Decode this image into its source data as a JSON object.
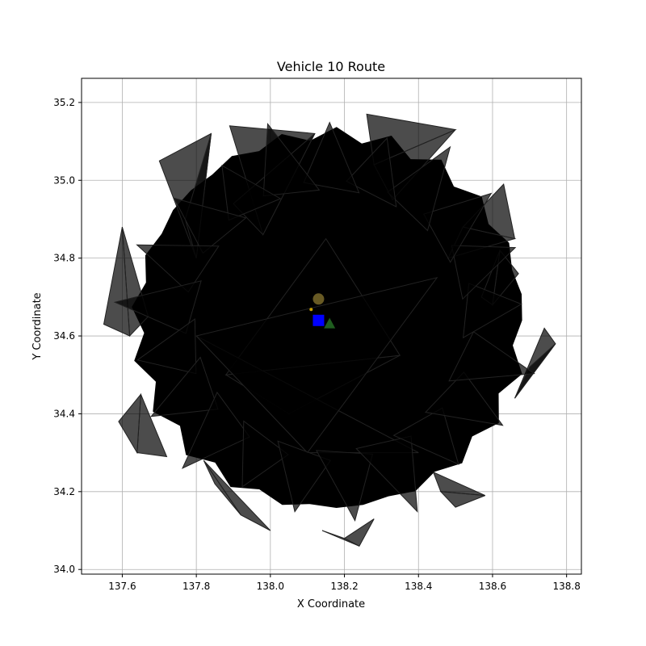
{
  "chart_data": {
    "type": "scatter",
    "title": "Vehicle 10 Route",
    "xlabel": "X Coordinate",
    "ylabel": "Y Coordinate",
    "xlim": [
      137.49,
      138.84
    ],
    "ylim": [
      33.988,
      35.262
    ],
    "xticks": [
      "137.6",
      "137.8",
      "138.0",
      "138.2",
      "138.4",
      "138.6",
      "138.8"
    ],
    "yticks": [
      "34.0",
      "34.2",
      "34.4",
      "34.6",
      "34.8",
      "35.0",
      "35.2"
    ],
    "grid": true,
    "colors": {
      "triangles": "#000000",
      "triangle_edge": "#222222",
      "square": "#0000ff",
      "circle": "#7a6a2a",
      "small_triangle": "#1f5e1f",
      "star": "#c8a000"
    },
    "triangle_clusters": [
      [
        [
          137.98,
          34.86
        ],
        [
          137.89,
          35.14
        ],
        [
          138.12,
          35.12
        ],
        [
          137.9,
          34.94
        ]
      ],
      [
        [
          138.28,
          35.04
        ],
        [
          138.26,
          35.17
        ],
        [
          138.5,
          35.13
        ],
        [
          138.33,
          34.95
        ]
      ],
      [
        [
          138.52,
          34.88
        ],
        [
          138.63,
          34.99
        ],
        [
          138.66,
          34.85
        ],
        [
          138.48,
          34.8
        ]
      ],
      [
        [
          137.8,
          34.8
        ],
        [
          137.7,
          35.05
        ],
        [
          137.84,
          35.12
        ],
        [
          137.77,
          34.9
        ]
      ],
      [
        [
          137.62,
          34.6
        ],
        [
          137.55,
          34.63
        ],
        [
          137.6,
          34.88
        ],
        [
          137.67,
          34.65
        ]
      ],
      [
        [
          137.64,
          34.3
        ],
        [
          137.59,
          34.38
        ],
        [
          137.65,
          34.45
        ],
        [
          137.72,
          34.29
        ]
      ],
      [
        [
          137.92,
          34.14
        ],
        [
          137.85,
          34.22
        ],
        [
          137.82,
          34.28
        ],
        [
          138.0,
          34.1
        ]
      ],
      [
        [
          138.2,
          34.08
        ],
        [
          138.14,
          34.1
        ],
        [
          138.24,
          34.06
        ],
        [
          138.28,
          34.13
        ]
      ],
      [
        [
          138.46,
          34.2
        ],
        [
          138.5,
          34.16
        ],
        [
          138.58,
          34.19
        ],
        [
          138.44,
          34.25
        ]
      ],
      [
        [
          138.66,
          34.44
        ],
        [
          138.74,
          34.62
        ],
        [
          138.77,
          34.58
        ],
        [
          138.7,
          34.52
        ]
      ],
      [
        [
          138.6,
          34.68
        ],
        [
          138.67,
          34.76
        ],
        [
          138.62,
          34.82
        ],
        [
          138.57,
          34.7
        ]
      ],
      [
        [
          137.88,
          34.5
        ],
        [
          138.05,
          34.4
        ],
        [
          138.35,
          34.55
        ],
        [
          138.15,
          34.85
        ]
      ],
      [
        [
          138.1,
          34.3
        ],
        [
          138.4,
          34.3
        ],
        [
          137.8,
          34.6
        ],
        [
          138.45,
          34.75
        ]
      ]
    ],
    "points": [
      {
        "marker": "square",
        "x": 138.13,
        "y": 34.64
      },
      {
        "marker": "circle",
        "x": 138.13,
        "y": 34.695
      },
      {
        "marker": "triangle",
        "x": 138.16,
        "y": 34.63
      },
      {
        "marker": "star",
        "x": 138.11,
        "y": 34.668
      }
    ]
  }
}
